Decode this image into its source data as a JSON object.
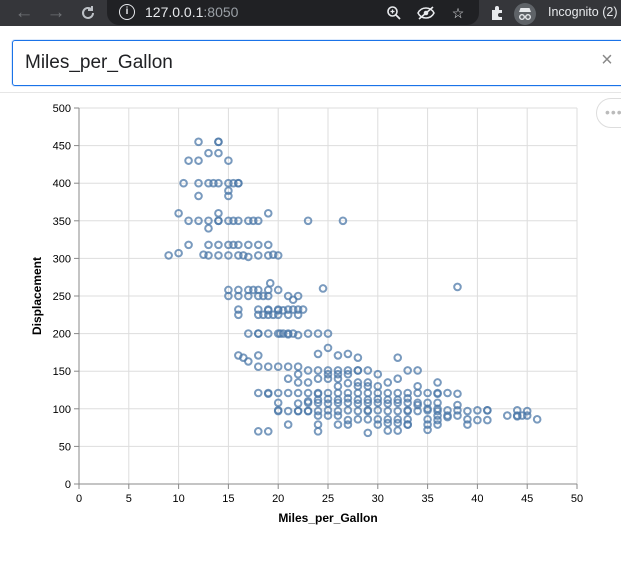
{
  "browser": {
    "url_host": "127.0.0.1",
    "url_port": ":8050",
    "incognito_label": "Incognito (2)"
  },
  "search": {
    "value": "Miles_per_Gallon",
    "clear_glyph": "×"
  },
  "colors": {
    "point_stroke": "#4c78a8",
    "grid": "#dddddd",
    "axis": "#888888"
  },
  "chart_data": {
    "type": "scatter",
    "xlabel": "Miles_per_Gallon",
    "ylabel": "Displacement",
    "xlim": [
      0,
      50
    ],
    "ylim": [
      0,
      500
    ],
    "x_ticks": [
      0,
      5,
      10,
      15,
      20,
      25,
      30,
      35,
      40,
      45,
      50
    ],
    "y_ticks": [
      0,
      50,
      100,
      150,
      200,
      250,
      300,
      350,
      400,
      450,
      500
    ],
    "grid": true,
    "marker": "hollow-circle",
    "points": [
      [
        12,
        455
      ],
      [
        14,
        455
      ],
      [
        14,
        455
      ],
      [
        14,
        440
      ],
      [
        13,
        440
      ],
      [
        11,
        430
      ],
      [
        12,
        430
      ],
      [
        15,
        430
      ],
      [
        10.5,
        400
      ],
      [
        12,
        400
      ],
      [
        13,
        400
      ],
      [
        13.5,
        400
      ],
      [
        14,
        400
      ],
      [
        15,
        400
      ],
      [
        15.5,
        400
      ],
      [
        16,
        400
      ],
      [
        16,
        400
      ],
      [
        15,
        390
      ],
      [
        12,
        383
      ],
      [
        15,
        383
      ],
      [
        10,
        360
      ],
      [
        14,
        360
      ],
      [
        19,
        360
      ],
      [
        11,
        350
      ],
      [
        12,
        350
      ],
      [
        13,
        350
      ],
      [
        14,
        350
      ],
      [
        14,
        350
      ],
      [
        15,
        350
      ],
      [
        15.5,
        350
      ],
      [
        16,
        350
      ],
      [
        17,
        350
      ],
      [
        17.5,
        350
      ],
      [
        18,
        350
      ],
      [
        13,
        340
      ],
      [
        23,
        350
      ],
      [
        26.5,
        350
      ],
      [
        9,
        304
      ],
      [
        10,
        307
      ],
      [
        11,
        318
      ],
      [
        13,
        318
      ],
      [
        13,
        304
      ],
      [
        14,
        318
      ],
      [
        14,
        304
      ],
      [
        15,
        318
      ],
      [
        15,
        304
      ],
      [
        16,
        318
      ],
      [
        16,
        304
      ],
      [
        17,
        318
      ],
      [
        17,
        302
      ],
      [
        18,
        318
      ],
      [
        18,
        304
      ],
      [
        19,
        318
      ],
      [
        19,
        304
      ],
      [
        20,
        304
      ],
      [
        19.5,
        305
      ],
      [
        16.5,
        304
      ],
      [
        15.5,
        318
      ],
      [
        12.5,
        305
      ],
      [
        15,
        258
      ],
      [
        15,
        250
      ],
      [
        16,
        258
      ],
      [
        16,
        250
      ],
      [
        17,
        258
      ],
      [
        17,
        250
      ],
      [
        17.5,
        258
      ],
      [
        18,
        258
      ],
      [
        18,
        250
      ],
      [
        18.5,
        250
      ],
      [
        19,
        250
      ],
      [
        19,
        258
      ],
      [
        20,
        258
      ],
      [
        21,
        250
      ],
      [
        22,
        250
      ],
      [
        24.5,
        260
      ],
      [
        16,
        232
      ],
      [
        16,
        225
      ],
      [
        19.2,
        267
      ],
      [
        21.5,
        245
      ],
      [
        38,
        262
      ],
      [
        18,
        232
      ],
      [
        18,
        225
      ],
      [
        19,
        232
      ],
      [
        19,
        225
      ],
      [
        19,
        231
      ],
      [
        20,
        232
      ],
      [
        20,
        225
      ],
      [
        20,
        231
      ],
      [
        21,
        232
      ],
      [
        21,
        225
      ],
      [
        22,
        232
      ],
      [
        22,
        225
      ],
      [
        18.5,
        225
      ],
      [
        19.5,
        225
      ],
      [
        20.5,
        231
      ],
      [
        21.5,
        232
      ],
      [
        22.5,
        232
      ],
      [
        20,
        200
      ],
      [
        20.5,
        200
      ],
      [
        21,
        200
      ],
      [
        21,
        199
      ],
      [
        20.2,
        200
      ],
      [
        18,
        200
      ],
      [
        19,
        200
      ],
      [
        21.5,
        200
      ],
      [
        22,
        198
      ],
      [
        23,
        200
      ],
      [
        24,
        200
      ],
      [
        25,
        200
      ],
      [
        17,
        200
      ],
      [
        18,
        200
      ],
      [
        16,
        171
      ],
      [
        16.5,
        168
      ],
      [
        17,
        163
      ],
      [
        18,
        171
      ],
      [
        18,
        156
      ],
      [
        19,
        156
      ],
      [
        20,
        156
      ],
      [
        21,
        156
      ],
      [
        22,
        156
      ],
      [
        21,
        140
      ],
      [
        22,
        146
      ],
      [
        23,
        151
      ],
      [
        24,
        151
      ],
      [
        25,
        151
      ],
      [
        26,
        151
      ],
      [
        27,
        151
      ],
      [
        28,
        151
      ],
      [
        29,
        151
      ],
      [
        22,
        135
      ],
      [
        23,
        135
      ],
      [
        24,
        140
      ],
      [
        25,
        140
      ],
      [
        26,
        140
      ],
      [
        25,
        146
      ],
      [
        26,
        146
      ],
      [
        27,
        146
      ],
      [
        28,
        151
      ],
      [
        28,
        135
      ],
      [
        29,
        135
      ],
      [
        30,
        146
      ],
      [
        31,
        135
      ],
      [
        32,
        140
      ],
      [
        33,
        151
      ],
      [
        34,
        151
      ],
      [
        36,
        135
      ],
      [
        24,
        173
      ],
      [
        25,
        181
      ],
      [
        26,
        171
      ],
      [
        27,
        173
      ],
      [
        28,
        168
      ],
      [
        32,
        168
      ],
      [
        18,
        121
      ],
      [
        19,
        120
      ],
      [
        19,
        121
      ],
      [
        20,
        121
      ],
      [
        21,
        121
      ],
      [
        22,
        121
      ],
      [
        23,
        121
      ],
      [
        24,
        121
      ],
      [
        24,
        120
      ],
      [
        25,
        121
      ],
      [
        26,
        121
      ],
      [
        27,
        121
      ],
      [
        28,
        121
      ],
      [
        29,
        121
      ],
      [
        30,
        121
      ],
      [
        31,
        121
      ],
      [
        32,
        121
      ],
      [
        33,
        121
      ],
      [
        34,
        121
      ],
      [
        35,
        121
      ],
      [
        36,
        121
      ],
      [
        37,
        121
      ],
      [
        23,
        110
      ],
      [
        24,
        112
      ],
      [
        25,
        113
      ],
      [
        26,
        112
      ],
      [
        27,
        114
      ],
      [
        28,
        112
      ],
      [
        29,
        112
      ],
      [
        30,
        113
      ],
      [
        31,
        112
      ],
      [
        32,
        112
      ],
      [
        33,
        114
      ],
      [
        26,
        130
      ],
      [
        28,
        130
      ],
      [
        29,
        130
      ],
      [
        30,
        130
      ],
      [
        34,
        130
      ],
      [
        27,
        134
      ],
      [
        20,
        108
      ],
      [
        22,
        107
      ],
      [
        23,
        108
      ],
      [
        24,
        108
      ],
      [
        25,
        107
      ],
      [
        26,
        108
      ],
      [
        27,
        108
      ],
      [
        28,
        107
      ],
      [
        29,
        108
      ],
      [
        30,
        108
      ],
      [
        31,
        107
      ],
      [
        32,
        108
      ],
      [
        33,
        108
      ],
      [
        34,
        108
      ],
      [
        35,
        108
      ],
      [
        36,
        108
      ],
      [
        38,
        105
      ],
      [
        20,
        98
      ],
      [
        22,
        97
      ],
      [
        23,
        97
      ],
      [
        24,
        97
      ],
      [
        25,
        98
      ],
      [
        26,
        97
      ],
      [
        27,
        98
      ],
      [
        28,
        97
      ],
      [
        29,
        97
      ],
      [
        29,
        98
      ],
      [
        30,
        98
      ],
      [
        31,
        97
      ],
      [
        32,
        97
      ],
      [
        33,
        98
      ],
      [
        34,
        97
      ],
      [
        35,
        98
      ],
      [
        36,
        97
      ],
      [
        37,
        98
      ],
      [
        38,
        98
      ],
      [
        39,
        97
      ],
      [
        40,
        98
      ],
      [
        41,
        98
      ],
      [
        44,
        98
      ],
      [
        43,
        91
      ],
      [
        44,
        91
      ],
      [
        44.5,
        91
      ],
      [
        45,
        91
      ],
      [
        46,
        86
      ],
      [
        36,
        91
      ],
      [
        37,
        89
      ],
      [
        38,
        91
      ],
      [
        39,
        86
      ],
      [
        40,
        85
      ],
      [
        41,
        85
      ],
      [
        35,
        86
      ],
      [
        36,
        85
      ],
      [
        33,
        86
      ],
      [
        32,
        86
      ],
      [
        31,
        86
      ],
      [
        30,
        86
      ],
      [
        29,
        86
      ],
      [
        28,
        86
      ],
      [
        27,
        85
      ],
      [
        26,
        91
      ],
      [
        25,
        91
      ],
      [
        24,
        91
      ],
      [
        23,
        97
      ],
      [
        22,
        97
      ],
      [
        21,
        97
      ],
      [
        20,
        97
      ],
      [
        21,
        79
      ],
      [
        24,
        79
      ],
      [
        26,
        79
      ],
      [
        27,
        79
      ],
      [
        30,
        79
      ],
      [
        31,
        81
      ],
      [
        32,
        81
      ],
      [
        33,
        79
      ],
      [
        35,
        79
      ],
      [
        36,
        79
      ],
      [
        39,
        79
      ],
      [
        31,
        71
      ],
      [
        32,
        71
      ],
      [
        33,
        79
      ],
      [
        35,
        72
      ],
      [
        29,
        68
      ],
      [
        24,
        70
      ],
      [
        18,
        70
      ],
      [
        19,
        70
      ],
      [
        44,
        90
      ],
      [
        41,
        98
      ],
      [
        45,
        97
      ],
      [
        36,
        120
      ],
      [
        38,
        120
      ],
      [
        35,
        100
      ],
      [
        36,
        100
      ],
      [
        37,
        91
      ],
      [
        34,
        105
      ],
      [
        33,
        97
      ]
    ]
  }
}
